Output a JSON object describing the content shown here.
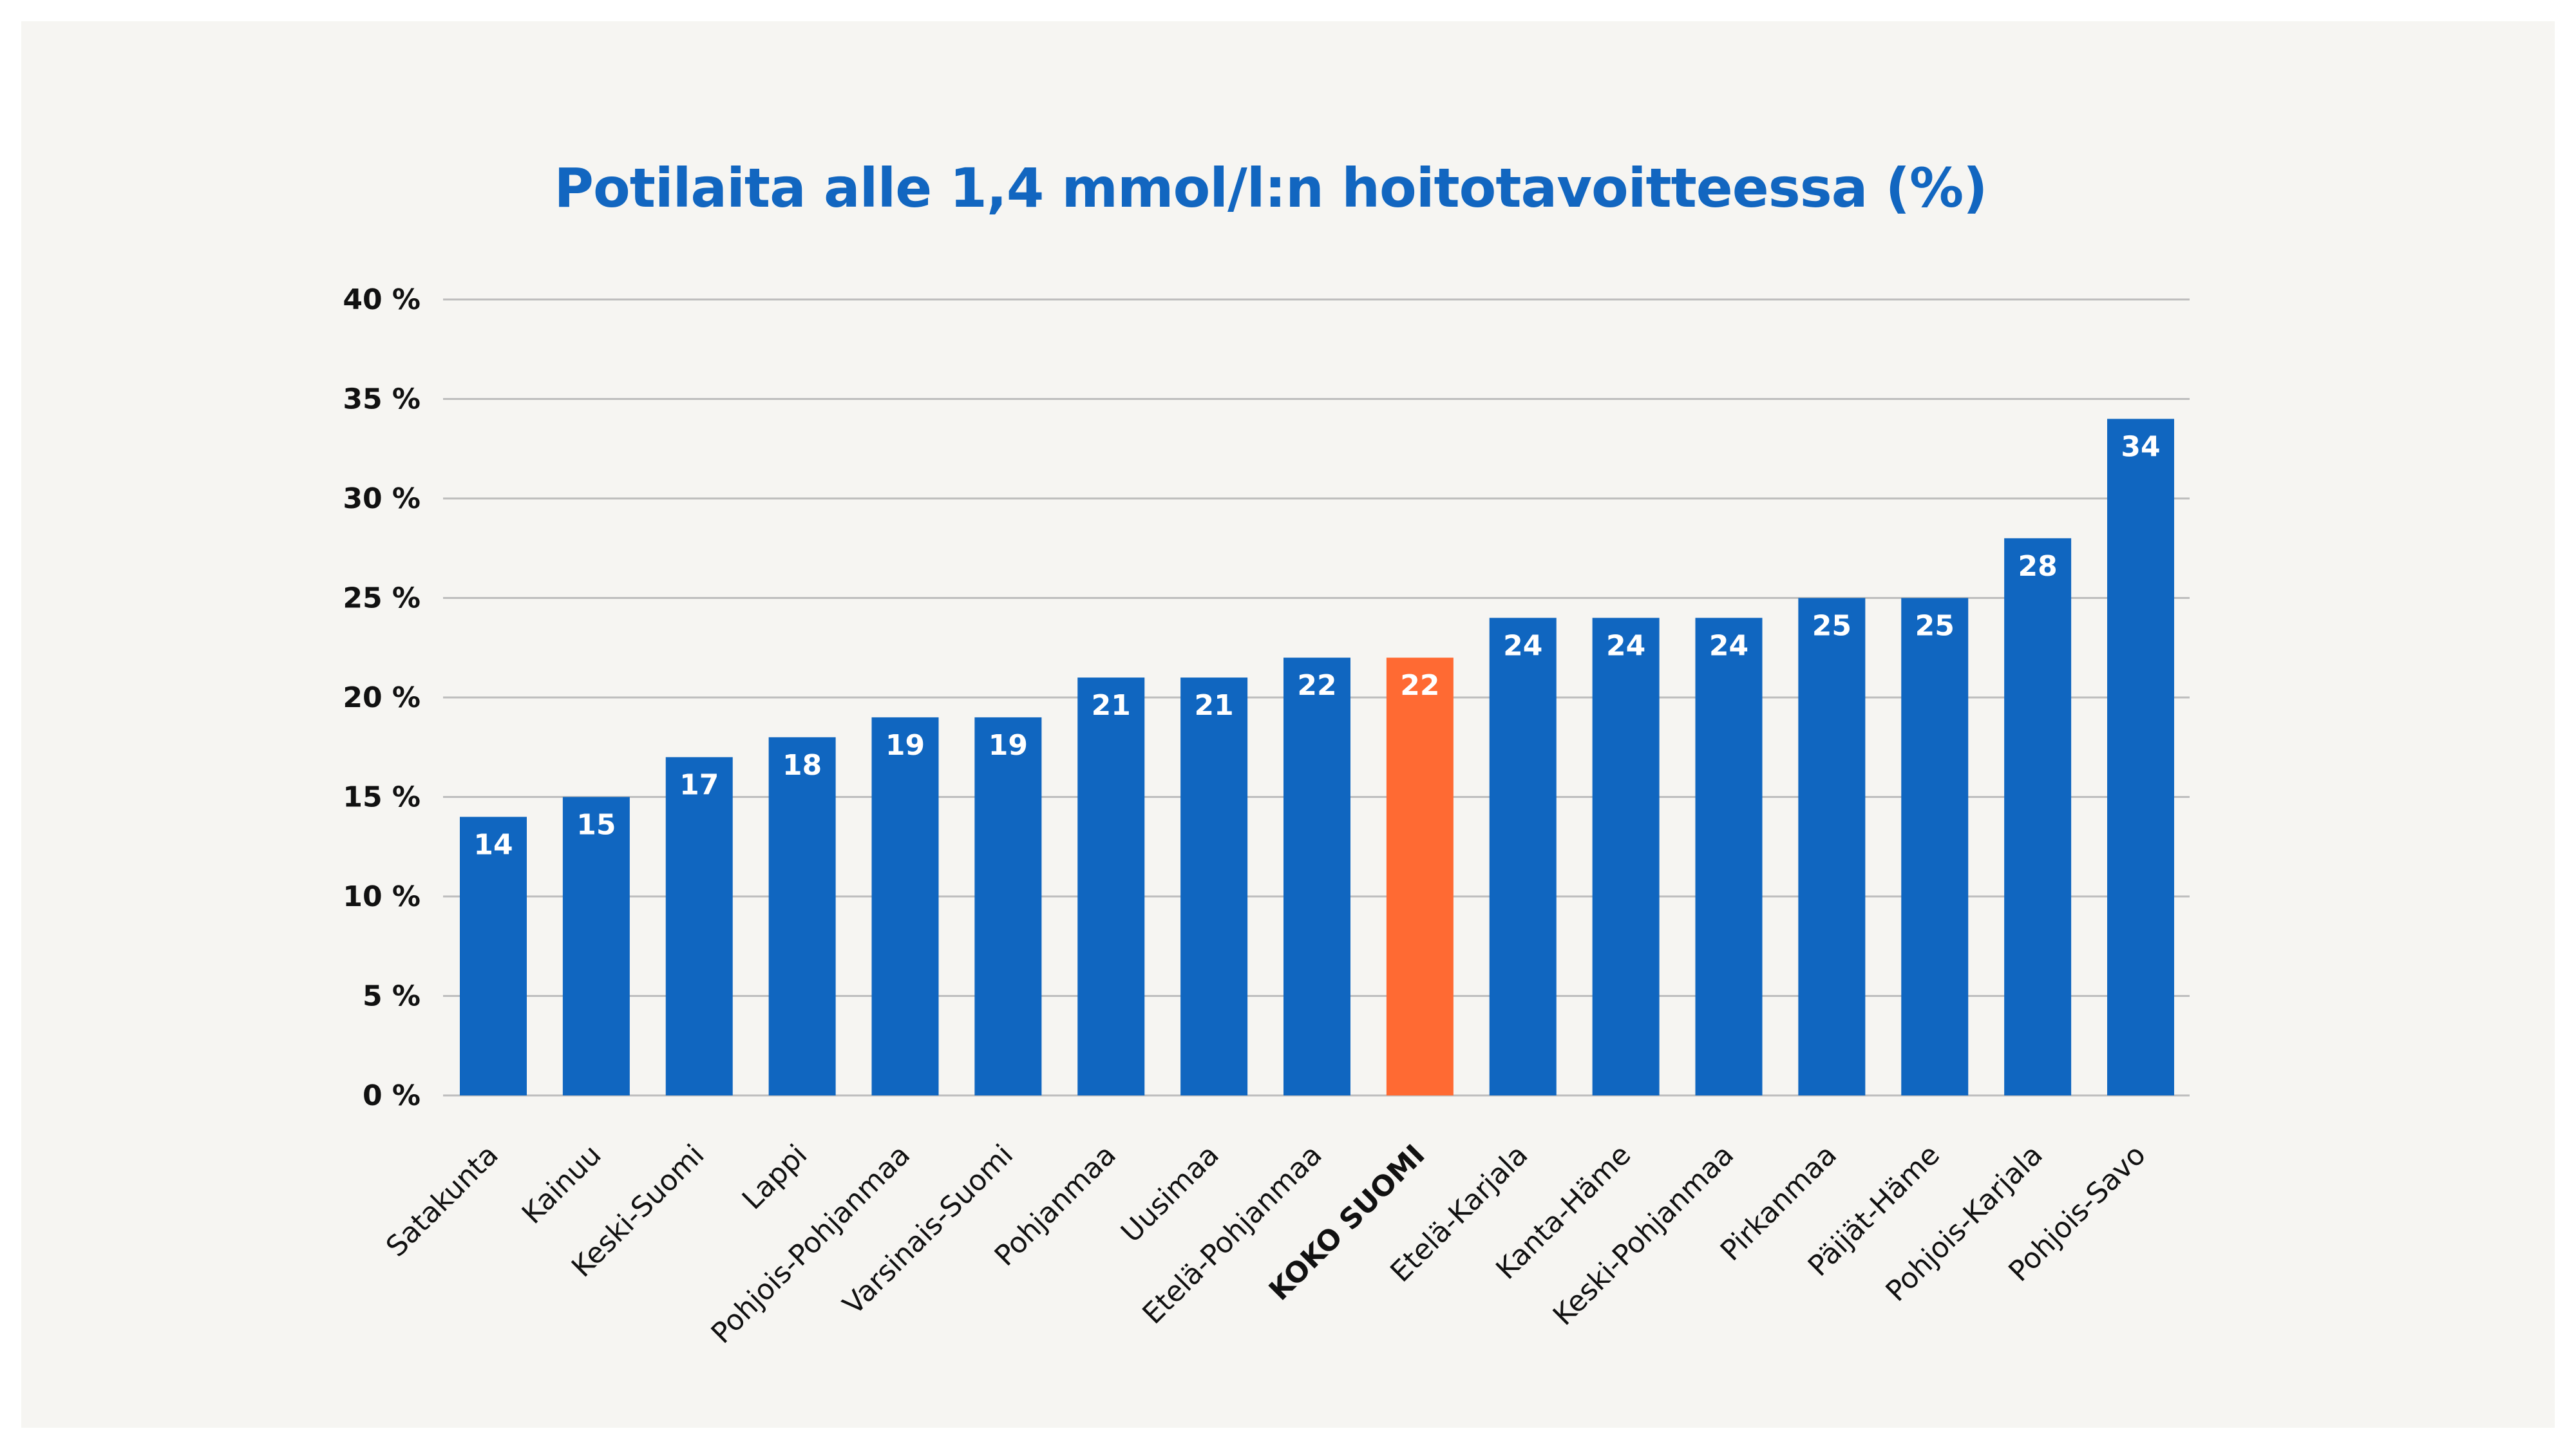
{
  "chart_data": {
    "type": "bar",
    "title": "Potilaita alle 1,4 mmol/l:n hoitotavoitteessa (%)",
    "xlabel": "",
    "ylabel": "",
    "ylim": [
      0,
      40
    ],
    "yticks": [
      0,
      5,
      10,
      15,
      20,
      25,
      30,
      35,
      40
    ],
    "ytick_labels": [
      "0 %",
      "5 %",
      "10 %",
      "15 %",
      "20 %",
      "25 %",
      "30 %",
      "35 %",
      "40 %"
    ],
    "grid": true,
    "legend": "none",
    "categories": [
      "Satakunta",
      "Kainuu",
      "Keski-Suomi",
      "Lappi",
      "Pohjois-Pohjanmaa",
      "Varsinais-Suomi",
      "Pohjanmaa",
      "Uusimaa",
      "Etelä-Pohjanmaa",
      "KOKO SUOMI",
      "Etelä-Karjala",
      "Kanta-Häme",
      "Keski-Pohjanmaa",
      "Pirkanmaa",
      "Päijät-Häme",
      "Pohjois-Karjala",
      "Pohjois-Savo"
    ],
    "values": [
      14,
      15,
      17,
      18,
      19,
      19,
      21,
      21,
      22,
      22,
      24,
      24,
      24,
      25,
      25,
      28,
      34
    ],
    "highlight_category": "KOKO SUOMI",
    "colors": {
      "bar": "#1066c0",
      "highlight": "#ff6a33",
      "title": "#1266c0",
      "grid": "#bdbdbd",
      "background": "#f6f5f2"
    }
  }
}
